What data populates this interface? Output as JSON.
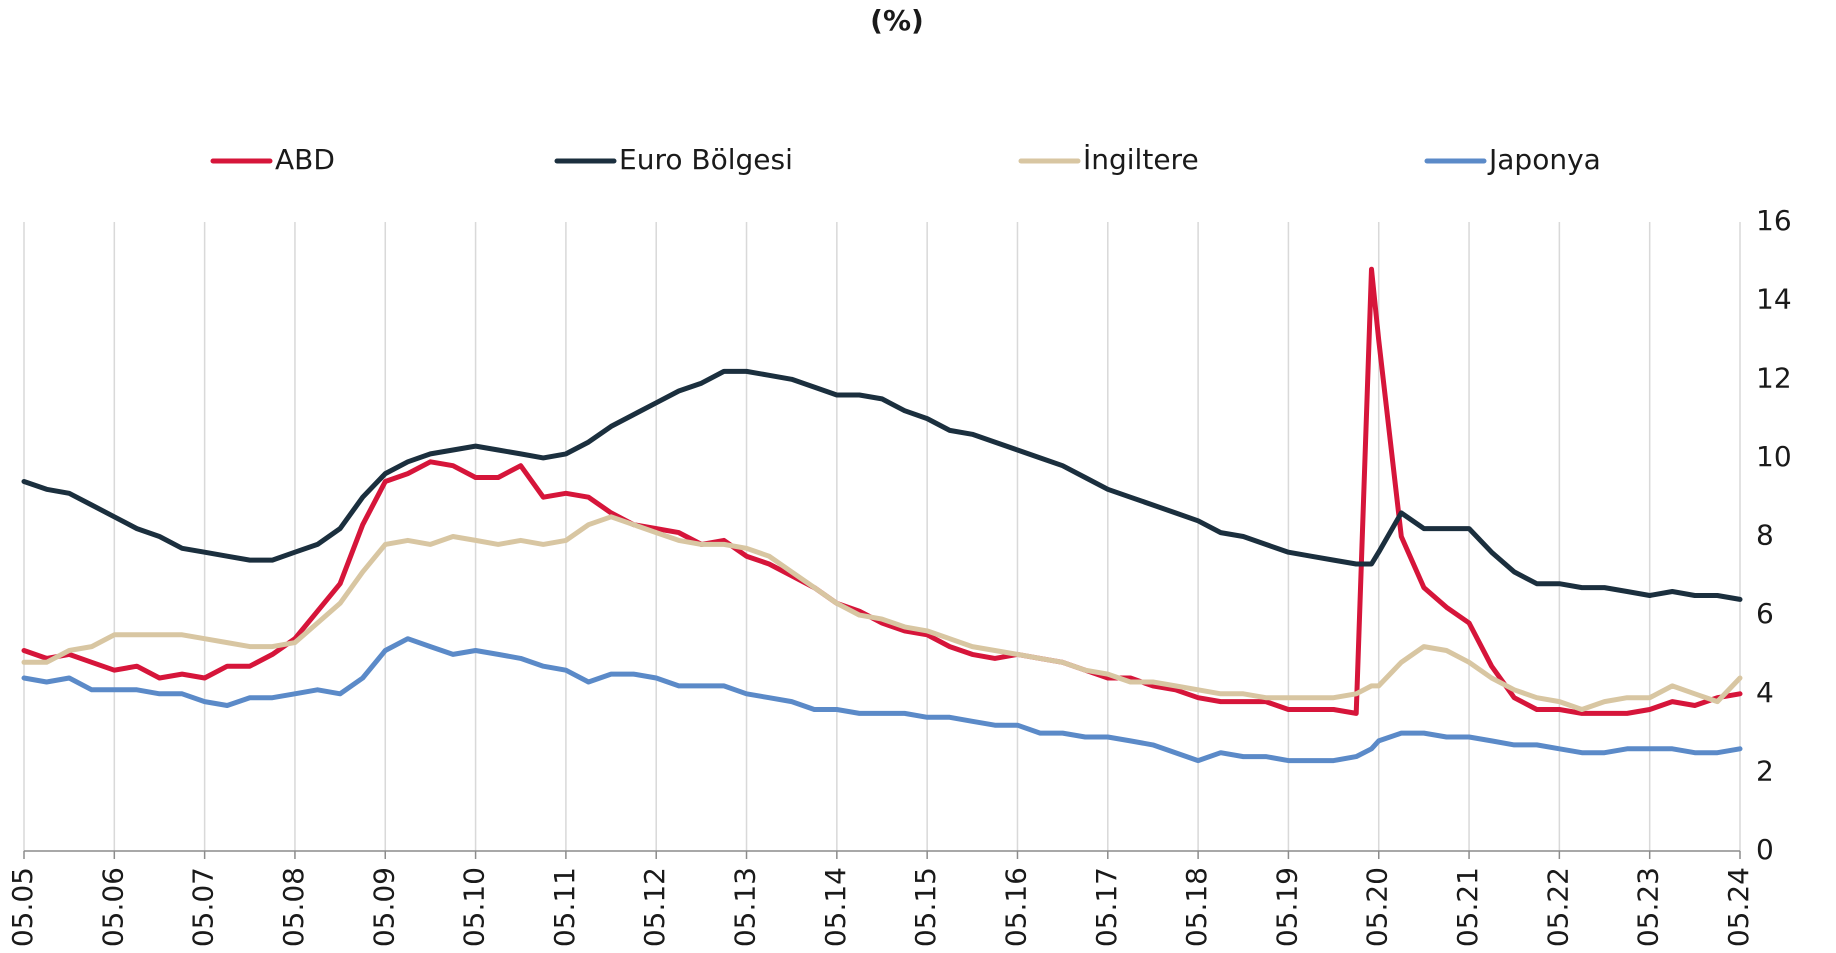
{
  "chart_data": {
    "type": "line",
    "title": "(%)",
    "x": [
      2005.33,
      2005.58,
      2005.83,
      2006.08,
      2006.33,
      2006.58,
      2006.83,
      2007.08,
      2007.33,
      2007.58,
      2007.83,
      2008.08,
      2008.33,
      2008.58,
      2008.83,
      2009.08,
      2009.33,
      2009.58,
      2009.83,
      2010.08,
      2010.33,
      2010.58,
      2010.83,
      2011.08,
      2011.33,
      2011.58,
      2011.83,
      2012.08,
      2012.33,
      2012.58,
      2012.83,
      2013.08,
      2013.33,
      2013.58,
      2013.83,
      2014.08,
      2014.33,
      2014.58,
      2014.83,
      2015.08,
      2015.33,
      2015.58,
      2015.83,
      2016.08,
      2016.33,
      2016.58,
      2016.83,
      2017.08,
      2017.33,
      2017.58,
      2017.83,
      2018.08,
      2018.33,
      2018.58,
      2018.83,
      2019.08,
      2019.33,
      2019.58,
      2019.83,
      2020.08,
      2020.25,
      2020.33,
      2020.58,
      2020.83,
      2021.08,
      2021.33,
      2021.58,
      2021.83,
      2022.08,
      2022.33,
      2022.58,
      2022.83,
      2023.08,
      2023.33,
      2023.58,
      2023.83,
      2024.08,
      2024.33
    ],
    "series": [
      {
        "name": "ABD",
        "color": "#d6153a",
        "values": [
          5.1,
          4.9,
          5.0,
          4.8,
          4.6,
          4.7,
          4.4,
          4.5,
          4.4,
          4.7,
          4.7,
          5.0,
          5.4,
          6.1,
          6.8,
          8.3,
          9.4,
          9.6,
          9.9,
          9.8,
          9.5,
          9.5,
          9.8,
          9.0,
          9.1,
          9.0,
          8.6,
          8.3,
          8.2,
          8.1,
          7.8,
          7.9,
          7.5,
          7.3,
          7.0,
          6.7,
          6.3,
          6.1,
          5.8,
          5.6,
          5.5,
          5.2,
          5.0,
          4.9,
          5.0,
          4.9,
          4.8,
          4.6,
          4.4,
          4.4,
          4.2,
          4.1,
          3.9,
          3.8,
          3.8,
          3.8,
          3.6,
          3.6,
          3.6,
          3.5,
          14.8,
          13.0,
          8.0,
          6.7,
          6.2,
          5.8,
          4.7,
          3.9,
          3.6,
          3.6,
          3.5,
          3.5,
          3.5,
          3.6,
          3.8,
          3.7,
          3.9,
          4.0
        ]
      },
      {
        "name": "Euro Bölgesi",
        "color": "#1b2f3e",
        "values": [
          9.4,
          9.2,
          9.1,
          8.8,
          8.5,
          8.2,
          8.0,
          7.7,
          7.6,
          7.5,
          7.4,
          7.4,
          7.6,
          7.8,
          8.2,
          9.0,
          9.6,
          9.9,
          10.1,
          10.2,
          10.3,
          10.2,
          10.1,
          10.0,
          10.1,
          10.4,
          10.8,
          11.1,
          11.4,
          11.7,
          11.9,
          12.2,
          12.2,
          12.1,
          12.0,
          11.8,
          11.6,
          11.6,
          11.5,
          11.2,
          11.0,
          10.7,
          10.6,
          10.4,
          10.2,
          10.0,
          9.8,
          9.5,
          9.2,
          9.0,
          8.8,
          8.6,
          8.4,
          8.1,
          8.0,
          7.8,
          7.6,
          7.5,
          7.4,
          7.3,
          7.3,
          7.6,
          8.6,
          8.2,
          8.2,
          8.2,
          7.6,
          7.1,
          6.8,
          6.8,
          6.7,
          6.7,
          6.6,
          6.5,
          6.6,
          6.5,
          6.5,
          6.4
        ]
      },
      {
        "name": "İngiltere",
        "color": "#d8c6a2",
        "values": [
          4.8,
          4.8,
          5.1,
          5.2,
          5.5,
          5.5,
          5.5,
          5.5,
          5.4,
          5.3,
          5.2,
          5.2,
          5.3,
          5.8,
          6.3,
          7.1,
          7.8,
          7.9,
          7.8,
          8.0,
          7.9,
          7.8,
          7.9,
          7.8,
          7.9,
          8.3,
          8.5,
          8.3,
          8.1,
          7.9,
          7.8,
          7.8,
          7.7,
          7.5,
          7.1,
          6.7,
          6.3,
          6.0,
          5.9,
          5.7,
          5.6,
          5.4,
          5.2,
          5.1,
          5.0,
          4.9,
          4.8,
          4.6,
          4.5,
          4.3,
          4.3,
          4.2,
          4.1,
          4.0,
          4.0,
          3.9,
          3.9,
          3.9,
          3.9,
          4.0,
          4.2,
          4.2,
          4.8,
          5.2,
          5.1,
          4.8,
          4.4,
          4.1,
          3.9,
          3.8,
          3.6,
          3.8,
          3.9,
          3.9,
          4.2,
          4.0,
          3.8,
          4.4
        ]
      },
      {
        "name": "Japonya",
        "color": "#5b8ac8",
        "values": [
          4.4,
          4.3,
          4.4,
          4.1,
          4.1,
          4.1,
          4.0,
          4.0,
          3.8,
          3.7,
          3.9,
          3.9,
          4.0,
          4.1,
          4.0,
          4.4,
          5.1,
          5.4,
          5.2,
          5.0,
          5.1,
          5.0,
          4.9,
          4.7,
          4.6,
          4.3,
          4.5,
          4.5,
          4.4,
          4.2,
          4.2,
          4.2,
          4.0,
          3.9,
          3.8,
          3.6,
          3.6,
          3.5,
          3.5,
          3.5,
          3.4,
          3.4,
          3.3,
          3.2,
          3.2,
          3.0,
          3.0,
          2.9,
          2.9,
          2.8,
          2.7,
          2.5,
          2.3,
          2.5,
          2.4,
          2.4,
          2.3,
          2.3,
          2.3,
          2.4,
          2.6,
          2.8,
          3.0,
          3.0,
          2.9,
          2.9,
          2.8,
          2.7,
          2.7,
          2.6,
          2.5,
          2.5,
          2.6,
          2.6,
          2.6,
          2.5,
          2.5,
          2.6
        ]
      }
    ],
    "xlim": [
      2005.33,
      2024.33
    ],
    "xticks": [
      {
        "value": 2005.33,
        "label": "05.05"
      },
      {
        "value": 2006.33,
        "label": "05.06"
      },
      {
        "value": 2007.33,
        "label": "05.07"
      },
      {
        "value": 2008.33,
        "label": "05.08"
      },
      {
        "value": 2009.33,
        "label": "05.09"
      },
      {
        "value": 2010.33,
        "label": "05.10"
      },
      {
        "value": 2011.33,
        "label": "05.11"
      },
      {
        "value": 2012.33,
        "label": "05.12"
      },
      {
        "value": 2013.33,
        "label": "05.13"
      },
      {
        "value": 2014.33,
        "label": "05.14"
      },
      {
        "value": 2015.33,
        "label": "05.15"
      },
      {
        "value": 2016.33,
        "label": "05.16"
      },
      {
        "value": 2017.33,
        "label": "05.17"
      },
      {
        "value": 2018.33,
        "label": "05.18"
      },
      {
        "value": 2019.33,
        "label": "05.19"
      },
      {
        "value": 2020.33,
        "label": "05.20"
      },
      {
        "value": 2021.33,
        "label": "05.21"
      },
      {
        "value": 2022.33,
        "label": "05.22"
      },
      {
        "value": 2023.33,
        "label": "05.23"
      },
      {
        "value": 2024.33,
        "label": "05.24"
      }
    ],
    "ylim": [
      0,
      16
    ],
    "yticks": [
      0,
      2,
      4,
      6,
      8,
      10,
      12,
      14,
      16
    ],
    "grid": true,
    "legend": "top",
    "y_axis_side": "right"
  }
}
